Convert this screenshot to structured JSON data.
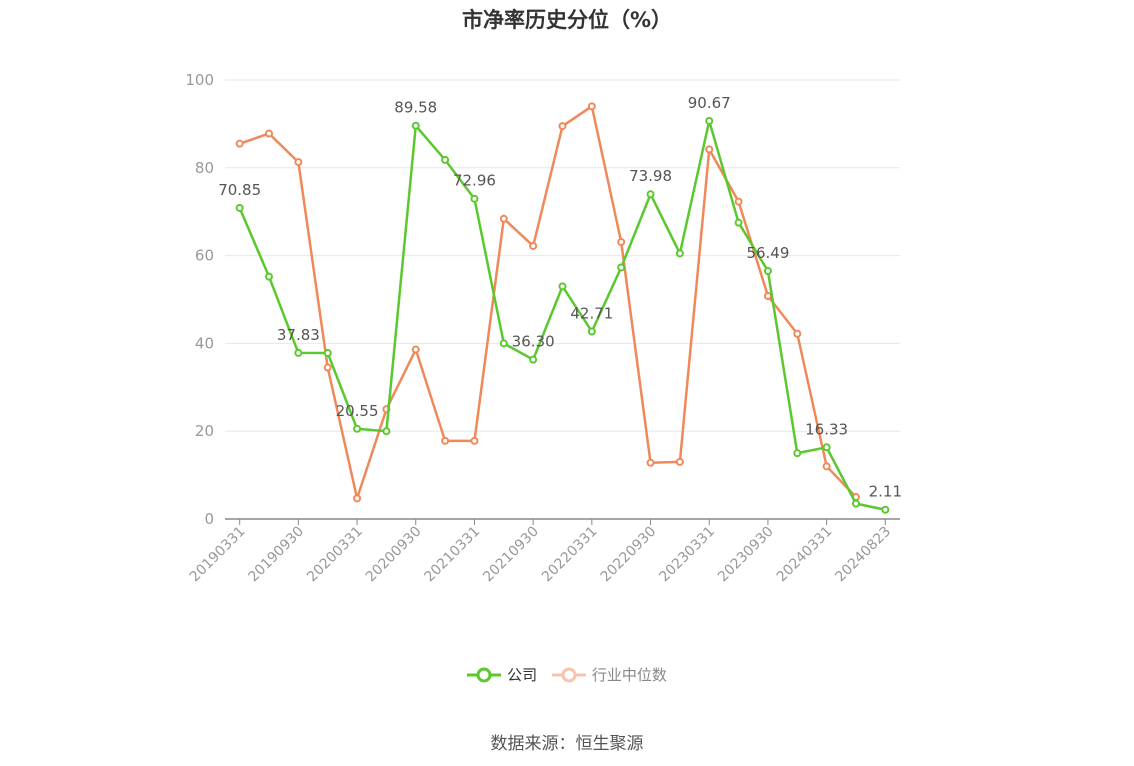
{
  "chart_data": {
    "type": "line",
    "title": "市净率历史分位（%）",
    "x": [
      "20190331",
      "20190630",
      "20190930",
      "20191231",
      "20200331",
      "20200630",
      "20200930",
      "20201231",
      "20210331",
      "20210630",
      "20210930",
      "20211231",
      "20220331",
      "20220630",
      "20220930",
      "20221231",
      "20230331",
      "20230630",
      "20230930",
      "20231231",
      "20240331",
      "20240630",
      "20240823"
    ],
    "x_tick_labels": [
      "20190331",
      "20190930",
      "20200331",
      "20200930",
      "20210331",
      "20210930",
      "20220331",
      "20220930",
      "20230331",
      "20230930",
      "20240331",
      "20240823"
    ],
    "ylim": [
      0,
      100
    ],
    "y_ticks": [
      0,
      20,
      40,
      60,
      80,
      100
    ],
    "grid": true,
    "legend_position": "bottom",
    "series": [
      {
        "name": "公司",
        "color": "#5ac82e",
        "values": [
          70.85,
          55.2,
          37.83,
          37.8,
          20.55,
          20.0,
          89.58,
          81.8,
          72.96,
          40.0,
          36.3,
          53.0,
          42.71,
          57.3,
          73.98,
          60.5,
          90.67,
          67.5,
          56.49,
          15.0,
          16.33,
          3.5,
          2.11
        ],
        "labels": [
          "70.85",
          "",
          "37.83",
          "",
          "20.55",
          "",
          "89.58",
          "",
          "72.96",
          "",
          "36.30",
          "",
          "42.71",
          "",
          "73.98",
          "",
          "90.67",
          "",
          "56.49",
          "",
          "16.33",
          "",
          "2.11"
        ]
      },
      {
        "name": "行业中位数",
        "color": "#f0895a",
        "values": [
          85.5,
          87.8,
          81.3,
          34.5,
          4.7,
          25.0,
          38.6,
          17.8,
          17.8,
          68.4,
          62.2,
          89.5,
          94.0,
          63.1,
          12.8,
          13.0,
          84.2,
          72.3,
          50.8,
          42.2,
          12.0,
          5.0,
          null
        ],
        "labels": []
      }
    ]
  },
  "legend": {
    "items": [
      {
        "label": "公司"
      },
      {
        "label": "行业中位数"
      }
    ]
  },
  "source": "数据来源：恒生聚源"
}
